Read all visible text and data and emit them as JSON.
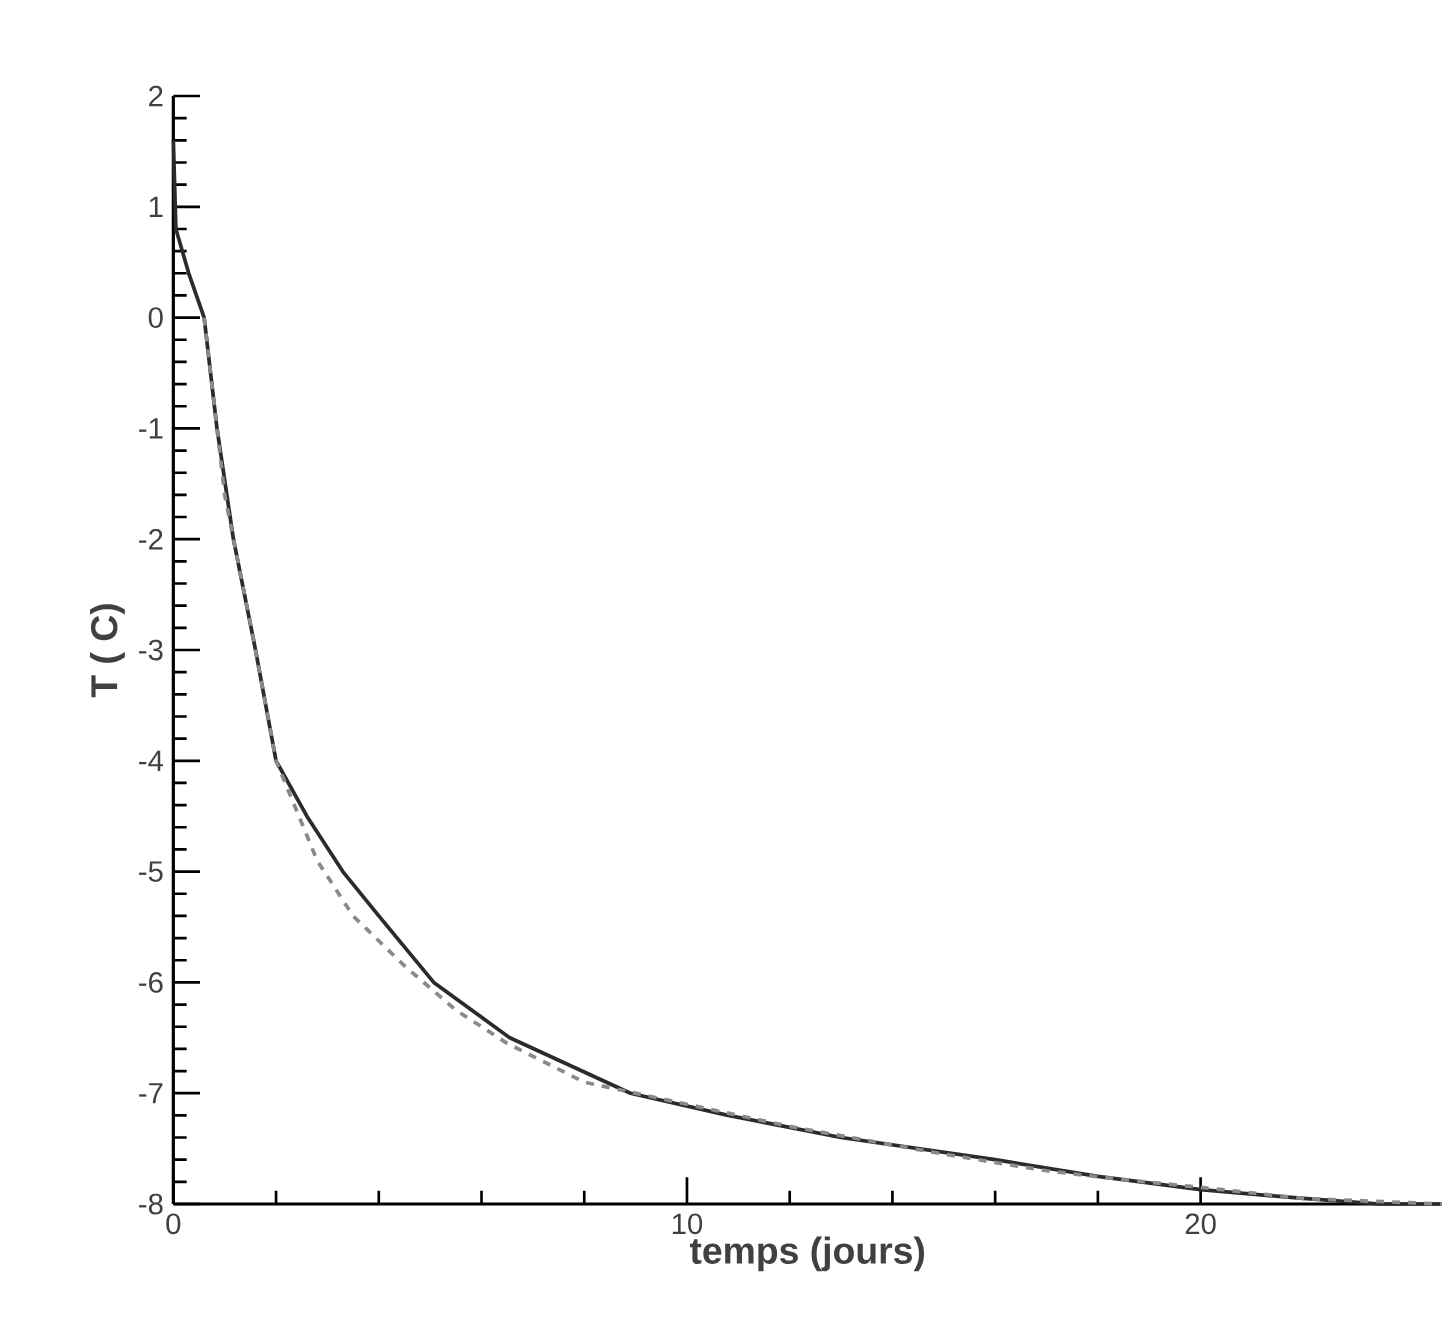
{
  "chart_data": {
    "type": "line",
    "xlabel": "temps (jours)",
    "ylabel": "T ( C)",
    "xlim": [
      0,
      24.7
    ],
    "ylim": [
      -8,
      2
    ],
    "xticks": [
      0,
      10,
      20
    ],
    "yticks": [
      -8,
      -7,
      -6,
      -5,
      -4,
      -3,
      -2,
      -1,
      0,
      1,
      2
    ],
    "series": [
      {
        "color": "#2b2b2b",
        "line_style": "solid",
        "x": [
          0,
          0.05,
          0.3,
          0.6,
          0.85,
          1.17,
          1.6,
          2.0,
          2.6,
          3.3,
          4.0,
          5.07,
          6.55,
          8.9,
          10.8,
          13,
          16,
          18,
          20,
          22,
          23.5,
          24.7
        ],
        "values": [
          1.6,
          0.8,
          0.4,
          0.0,
          -1.0,
          -2.0,
          -3.0,
          -4.0,
          -4.5,
          -5.0,
          -5.4,
          -6.0,
          -6.5,
          -7.0,
          -7.2,
          -7.4,
          -7.6,
          -7.75,
          -7.87,
          -7.95,
          -8.0,
          -8.0
        ]
      },
      {
        "color": "#8a8a8a",
        "line_style": "dashed",
        "x": [
          0.6,
          1.0,
          1.6,
          2.0,
          2.8,
          3.5,
          4.5,
          5.5,
          6.5,
          8,
          9.5,
          12,
          15,
          17,
          18.5,
          20,
          22,
          24.7
        ],
        "values": [
          0.0,
          -1.6,
          -3.0,
          -4.0,
          -4.9,
          -5.4,
          -5.85,
          -6.25,
          -6.55,
          -6.9,
          -7.05,
          -7.3,
          -7.55,
          -7.7,
          -7.78,
          -7.85,
          -7.95,
          -8.0
        ]
      }
    ]
  }
}
